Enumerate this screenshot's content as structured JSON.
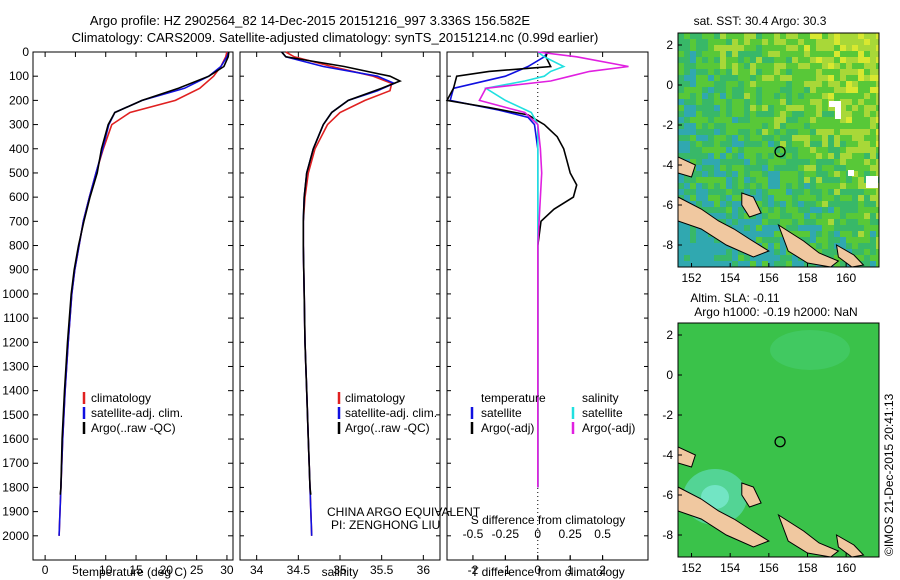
{
  "header": {
    "line1": "Argo profile: HZ 2902564_82 14-Dec-2015 20151216_997 3.336S 156.582E",
    "line2": "Climatology: CARS2009. Satellite-adjusted climatology: synTS_20151214.nc (0.99d earlier)"
  },
  "panel_titles": {
    "sst": "sat. SST: 30.4 Argo: 30.3",
    "sla1": "Altim. SLA: -0.11",
    "sla2": "Argo h1000: -0.19 h2000: NaN"
  },
  "side_text": "©IMOS 21-Dec-2015 20:41:13",
  "pi_text": {
    "line1": "CHINA ARGO EQUIVALENT",
    "line2": "PI: ZENGHONG LIU"
  },
  "colors": {
    "climatology": "#e02020",
    "satellite": "#1010e0",
    "argo": "#000000",
    "sal_satellite": "#20e0e0",
    "sal_argo": "#e020e0",
    "land": "#f0c8a0"
  },
  "chart_data": [
    {
      "type": "line",
      "xlabel": "temperature (deg C)",
      "ylabel": "",
      "xlim": [
        -2,
        31
      ],
      "ylim": [
        2100,
        0
      ],
      "xticks": [
        0,
        5,
        10,
        15,
        20,
        25,
        30
      ],
      "yticks": [
        0,
        100,
        200,
        300,
        400,
        500,
        600,
        700,
        800,
        900,
        1000,
        1100,
        1200,
        1300,
        1400,
        1500,
        1600,
        1700,
        1800,
        1900,
        2000
      ],
      "legend": [
        "climatology",
        "satellite-adj. clim.",
        "Argo(..raw -QC)"
      ],
      "legend_position": "lower-right",
      "series": [
        {
          "name": "climatology",
          "color": "#e02020",
          "depth": [
            0,
            20,
            60,
            100,
            150,
            200,
            250,
            300,
            400,
            500,
            600,
            700,
            800,
            900,
            1000,
            1200,
            1400,
            1600,
            1800,
            2000
          ],
          "values": [
            30.0,
            29.8,
            29.0,
            27.8,
            25.5,
            21.5,
            14.0,
            11.0,
            9.6,
            8.4,
            7.3,
            6.3,
            5.6,
            4.9,
            4.4,
            3.8,
            3.3,
            2.9,
            2.6,
            2.3
          ]
        },
        {
          "name": "satellite-adj. clim.",
          "color": "#1010e0",
          "depth": [
            0,
            20,
            60,
            100,
            150,
            200,
            250,
            300,
            400,
            500,
            600,
            700,
            800,
            900,
            1000,
            1200,
            1400,
            1600,
            1800,
            2000
          ],
          "values": [
            30.3,
            30.0,
            29.0,
            27.0,
            23.0,
            16.0,
            11.5,
            10.5,
            9.5,
            8.4,
            7.3,
            6.3,
            5.6,
            4.9,
            4.4,
            3.8,
            3.3,
            2.9,
            2.6,
            2.3
          ]
        },
        {
          "name": "Argo(..raw -QC)",
          "color": "#000000",
          "depth": [
            0,
            20,
            60,
            100,
            150,
            200,
            250,
            300,
            400,
            500,
            600,
            700,
            800,
            900,
            1000,
            1200,
            1400,
            1600,
            1800,
            1830
          ],
          "values": [
            30.3,
            30.2,
            29.5,
            27.0,
            22.0,
            16.0,
            11.5,
            10.4,
            9.3,
            8.6,
            7.4,
            6.4,
            5.5,
            4.8,
            4.3,
            3.7,
            3.2,
            2.8,
            2.6,
            2.5
          ]
        }
      ]
    },
    {
      "type": "line",
      "xlabel": "salinity",
      "ylabel": "",
      "xlim": [
        33.8,
        36.2
      ],
      "ylim": [
        2100,
        0
      ],
      "xticks": [
        34,
        34.5,
        35,
        35.5,
        36
      ],
      "legend": [
        "climatology",
        "satellite-adj. clim.",
        "Argo(..raw -QC)"
      ],
      "legend_position": "lower-right",
      "series": [
        {
          "name": "climatology",
          "color": "#e02020",
          "depth": [
            0,
            20,
            60,
            100,
            130,
            160,
            200,
            250,
            300,
            400,
            500,
            600,
            700,
            800,
            1000,
            1200,
            1400,
            1600,
            1800,
            2000
          ],
          "values": [
            34.35,
            34.45,
            34.9,
            35.4,
            35.62,
            35.6,
            35.3,
            35.0,
            34.85,
            34.7,
            34.62,
            34.58,
            34.56,
            34.56,
            34.57,
            34.58,
            34.6,
            34.62,
            34.64,
            34.66
          ]
        },
        {
          "name": "satellite-adj. clim.",
          "color": "#1010e0",
          "depth": [
            0,
            20,
            60,
            100,
            130,
            160,
            200,
            250,
            300,
            400,
            500,
            600,
            700,
            800,
            1000,
            1200,
            1400,
            1600,
            1800,
            2000
          ],
          "values": [
            34.3,
            34.35,
            34.8,
            35.45,
            35.65,
            35.45,
            35.1,
            34.9,
            34.8,
            34.68,
            34.6,
            34.57,
            34.56,
            34.56,
            34.57,
            34.58,
            34.6,
            34.62,
            34.64,
            34.66
          ]
        },
        {
          "name": "Argo(..raw -QC)",
          "color": "#000000",
          "depth": [
            0,
            20,
            60,
            100,
            120,
            150,
            200,
            250,
            300,
            400,
            500,
            600,
            700,
            800,
            1000,
            1200,
            1400,
            1600,
            1800,
            1830
          ],
          "values": [
            34.3,
            34.35,
            35.05,
            35.6,
            35.72,
            35.5,
            35.1,
            34.9,
            34.8,
            34.68,
            34.6,
            34.57,
            34.56,
            34.56,
            34.57,
            34.58,
            34.6,
            34.62,
            34.64,
            34.65
          ]
        }
      ]
    },
    {
      "type": "line",
      "xlabel": "T difference from climatology",
      "x2label": "S difference from climatology",
      "xlim": [
        -2.8,
        3.4
      ],
      "x2lim": [
        -0.7,
        0.85
      ],
      "ylim": [
        2100,
        0
      ],
      "xticks": [
        -2,
        -1,
        0,
        1,
        2
      ],
      "x2ticks": [
        -0.5,
        -0.25,
        0,
        0.25,
        0.5
      ],
      "x2ticklabels": [
        "-0.5",
        "-0.25",
        "0",
        "0.25",
        "0.5"
      ],
      "legend_temperature_title": "temperature",
      "legend_salinity_title": "salinity",
      "legend_items": [
        "satellite",
        "Argo(-adj)"
      ],
      "series": [
        {
          "name": "satellite",
          "axis": "T",
          "color": "#1010e0",
          "depth": [
            0,
            20,
            60,
            100,
            150,
            200,
            240,
            270,
            300,
            400,
            500,
            600,
            800,
            1000,
            1200,
            1400,
            1600,
            1800
          ],
          "values": [
            0.3,
            0.2,
            -0.3,
            -1.0,
            -2.6,
            -2.7,
            -1.2,
            -0.3,
            -0.1,
            0.0,
            0.0,
            0.0,
            0.0,
            0.0,
            0.0,
            0.0,
            0.0,
            0.0
          ]
        },
        {
          "name": "Argo(-adj)",
          "axis": "T",
          "color": "#000000",
          "depth": [
            0,
            20,
            60,
            80,
            100,
            150,
            200,
            230,
            260,
            300,
            350,
            400,
            450,
            500,
            550,
            600,
            650,
            700,
            800,
            1000,
            1200,
            1400,
            1600,
            1800
          ],
          "values": [
            0.3,
            0.25,
            0.4,
            -1.5,
            -2.5,
            -2.6,
            -2.8,
            -1.5,
            -0.3,
            0.2,
            0.6,
            0.8,
            0.9,
            1.0,
            1.2,
            1.1,
            0.5,
            0.1,
            0.0,
            0.0,
            0.0,
            0.0,
            0.0,
            0.0
          ]
        },
        {
          "name": "satellite",
          "axis": "S",
          "color": "#20e0e0",
          "depth": [
            0,
            20,
            60,
            80,
            100,
            120,
            150,
            200,
            250,
            300,
            400,
            500,
            600,
            700,
            800,
            1000,
            1200,
            1400,
            1600,
            1800
          ],
          "values": [
            0.0,
            0.05,
            0.2,
            0.1,
            0.05,
            -0.1,
            -0.4,
            -0.25,
            -0.05,
            0.0,
            0.0,
            0.0,
            0.0,
            0.0,
            0.0,
            0.0,
            0.0,
            0.0,
            0.0,
            0.0
          ]
        },
        {
          "name": "Argo(-adj)",
          "axis": "S",
          "color": "#e020e0",
          "depth": [
            0,
            20,
            60,
            80,
            100,
            120,
            150,
            200,
            250,
            300,
            400,
            500,
            600,
            700,
            800,
            1000,
            1200,
            1400,
            1600,
            1800
          ],
          "values": [
            0.0,
            0.3,
            0.7,
            0.4,
            0.25,
            0.1,
            -0.4,
            -0.45,
            -0.1,
            0.0,
            0.02,
            0.03,
            0.02,
            0.01,
            0.0,
            0.0,
            0.0,
            0.0,
            0.0,
            0.0
          ]
        }
      ]
    },
    {
      "type": "heatmap",
      "title": "sat. SST: 30.4 Argo: 30.3",
      "xlim": [
        151.3,
        161.7
      ],
      "ylim": [
        -9.1,
        2.6
      ],
      "xticks": [
        152,
        154,
        156,
        158,
        160
      ],
      "yticks": [
        2,
        0,
        -2,
        -4,
        -6,
        -8
      ],
      "marker": {
        "lon": 156.582,
        "lat": -3.336
      }
    },
    {
      "type": "heatmap",
      "title": "Altim. SLA: -0.11",
      "xlim": [
        151.3,
        161.7
      ],
      "ylim": [
        -9.1,
        2.6
      ],
      "xticks": [
        152,
        154,
        156,
        158,
        160
      ],
      "yticks": [
        2,
        0,
        -2,
        -4,
        -6,
        -8
      ],
      "marker": {
        "lon": 156.582,
        "lat": -3.336
      }
    }
  ]
}
